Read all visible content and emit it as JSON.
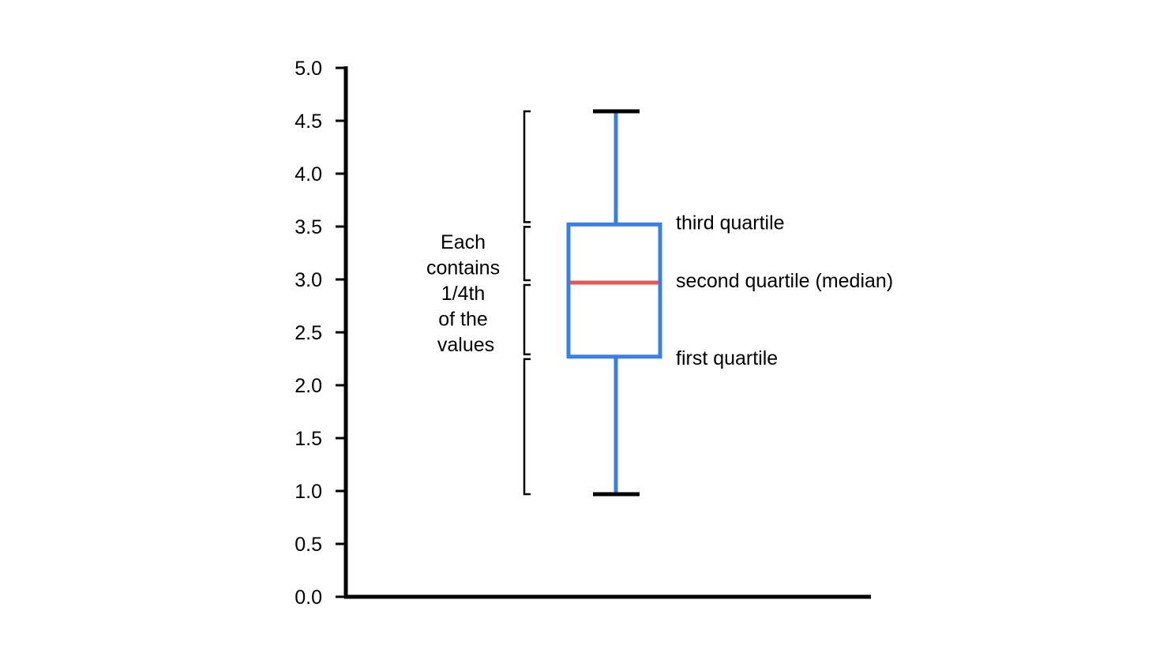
{
  "chart_data": {
    "type": "box",
    "title": "",
    "xlabel": "",
    "ylabel": "",
    "ylim": [
      0,
      5
    ],
    "yticks": [
      "0.0",
      "0.5",
      "1.0",
      "1.5",
      "2.0",
      "2.5",
      "3.0",
      "3.5",
      "4.0",
      "4.5",
      "5.0"
    ],
    "grid": false,
    "box": {
      "min": 0.97,
      "q1": 2.27,
      "median": 2.97,
      "q3": 3.52,
      "max": 4.59
    },
    "annotations": {
      "q3_label": "third quartile",
      "median_label": "second quartile (median)",
      "q1_label": "first quartile",
      "bracket_note_lines": [
        "Each",
        "contains",
        "1/4th",
        "of the",
        "values"
      ]
    },
    "colors": {
      "box": "#3A7FE3",
      "median": "#E45757",
      "whisker_cap": "#000000",
      "axis": "#000000",
      "bracket": "#000000"
    }
  }
}
